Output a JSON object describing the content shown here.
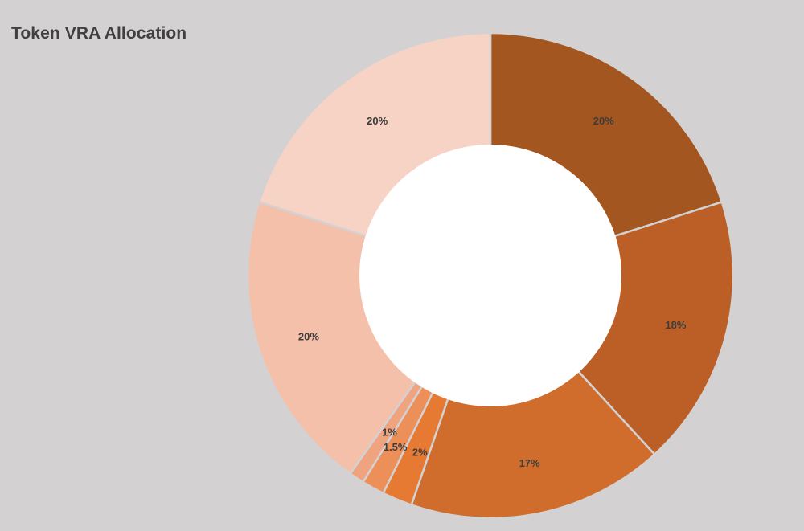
{
  "chart_data": {
    "type": "donut",
    "title": "Token VRA Allocation",
    "start_angle_deg": 0,
    "direction": "clockwise",
    "slices": [
      {
        "label": "20%",
        "value": 20,
        "color": "#a3561f"
      },
      {
        "label": "18%",
        "value": 18,
        "color": "#bb5f26"
      },
      {
        "label": "17%",
        "value": 17,
        "color": "#d06d2d"
      },
      {
        "label": "2%",
        "value": 2,
        "color": "#e67a33"
      },
      {
        "label": "1.5%",
        "value": 1.5,
        "color": "#ec8f59"
      },
      {
        "label": "1%",
        "value": 1,
        "color": "#efa37f"
      },
      {
        "label": "20%",
        "value": 20,
        "color": "#f4c0aa"
      },
      {
        "label": "20%",
        "value": 20,
        "color": "#f6d3c5"
      }
    ],
    "slice_separator_color": "#d3d1d2",
    "hole_color": "#ffffff"
  }
}
